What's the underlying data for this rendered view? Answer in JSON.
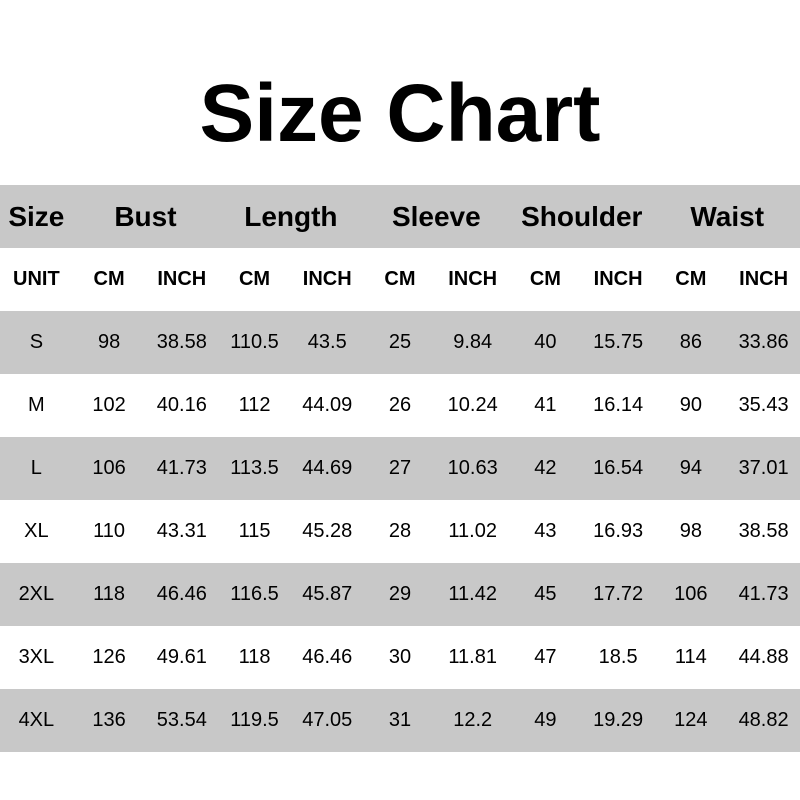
{
  "title": "Size Chart",
  "colors": {
    "stripe": "#c8c8c8",
    "background": "#ffffff",
    "text": "#000000"
  },
  "chart_data": {
    "type": "table",
    "title": "Size Chart",
    "group_headers": [
      {
        "label": "Size",
        "span": 1
      },
      {
        "label": "Bust",
        "span": 2
      },
      {
        "label": "Length",
        "span": 2
      },
      {
        "label": "Sleeve",
        "span": 2
      },
      {
        "label": "Shoulder",
        "span": 2
      },
      {
        "label": "Waist",
        "span": 2
      }
    ],
    "unit_row": [
      "UNIT",
      "CM",
      "INCH",
      "CM",
      "INCH",
      "CM",
      "INCH",
      "CM",
      "INCH",
      "CM",
      "INCH"
    ],
    "rows": [
      {
        "size": "S",
        "values": [
          "98",
          "38.58",
          "110.5",
          "43.5",
          "25",
          "9.84",
          "40",
          "15.75",
          "86",
          "33.86"
        ]
      },
      {
        "size": "M",
        "values": [
          "102",
          "40.16",
          "112",
          "44.09",
          "26",
          "10.24",
          "41",
          "16.14",
          "90",
          "35.43"
        ]
      },
      {
        "size": "L",
        "values": [
          "106",
          "41.73",
          "113.5",
          "44.69",
          "27",
          "10.63",
          "42",
          "16.54",
          "94",
          "37.01"
        ]
      },
      {
        "size": "XL",
        "values": [
          "110",
          "43.31",
          "115",
          "45.28",
          "28",
          "11.02",
          "43",
          "16.93",
          "98",
          "38.58"
        ]
      },
      {
        "size": "2XL",
        "values": [
          "118",
          "46.46",
          "116.5",
          "45.87",
          "29",
          "11.42",
          "45",
          "17.72",
          "106",
          "41.73"
        ]
      },
      {
        "size": "3XL",
        "values": [
          "126",
          "49.61",
          "118",
          "46.46",
          "30",
          "11.81",
          "47",
          "18.5",
          "114",
          "44.88"
        ]
      },
      {
        "size": "4XL",
        "values": [
          "136",
          "53.54",
          "119.5",
          "47.05",
          "31",
          "12.2",
          "49",
          "19.29",
          "124",
          "48.82"
        ]
      }
    ],
    "layout": {
      "columns": 11,
      "stripe_pattern": "group header row gray, unit row white, data rows alternate starting gray",
      "grid": "off",
      "borders": "none"
    }
  }
}
